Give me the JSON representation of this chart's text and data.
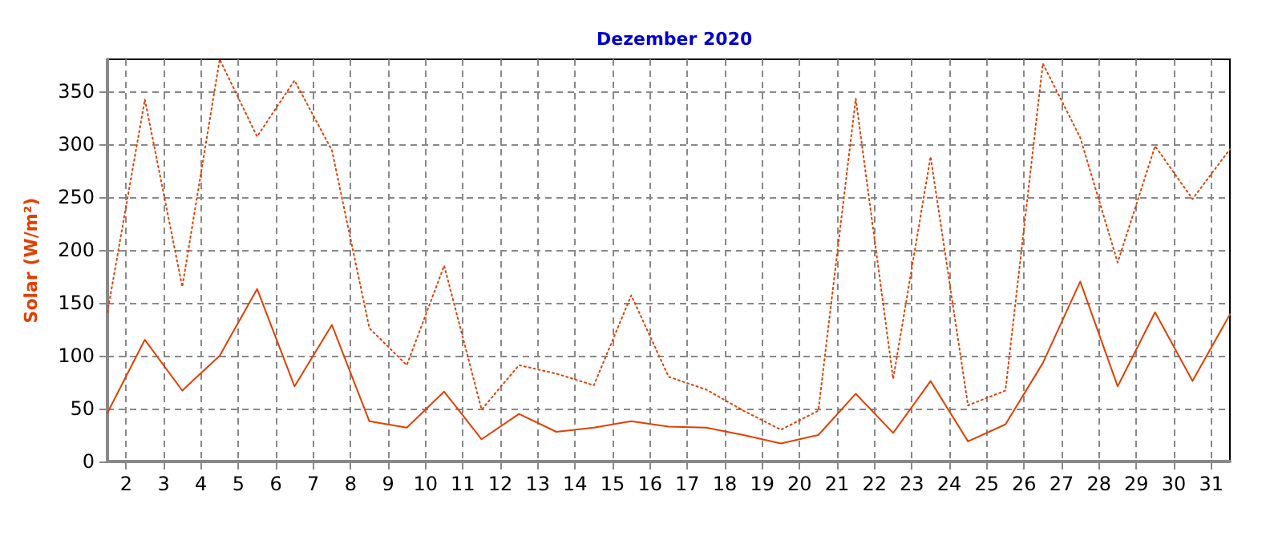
{
  "chart_data": {
    "type": "line",
    "title": "Dezember 2020",
    "ylabel": "Solar (W/m²)",
    "x": [
      1.5,
      2.5,
      3.5,
      4.5,
      5.5,
      6.5,
      7.5,
      8.5,
      9.5,
      10.5,
      11.5,
      12.5,
      13.5,
      14.5,
      15.5,
      16.5,
      17.5,
      18.5,
      19.5,
      20.5,
      21.5,
      22.5,
      23.5,
      24.5,
      25.5,
      26.5,
      27.5,
      28.5,
      29.5,
      30.5,
      31.5
    ],
    "series": [
      {
        "color": "#e04000",
        "line_style": "solid",
        "values": [
          46,
          115,
          67,
          100,
          163,
          71,
          129,
          38,
          32,
          66,
          21,
          45,
          28,
          32,
          38,
          33,
          32,
          25,
          17,
          25,
          64,
          27,
          76,
          19,
          35,
          93,
          170,
          71,
          141,
          76,
          139
        ]
      },
      {
        "color": "#e04000",
        "line_style": "dotted",
        "values": [
          141,
          342,
          165,
          380,
          307,
          360,
          294,
          126,
          91,
          185,
          49,
          91,
          83,
          72,
          157,
          80,
          68,
          48,
          30,
          48,
          343,
          78,
          288,
          53,
          67,
          376,
          306,
          188,
          298,
          248,
          295
        ]
      }
    ],
    "xlim": [
      1.5,
      31.5
    ],
    "xticks": [
      2,
      3,
      4,
      5,
      6,
      7,
      8,
      9,
      10,
      11,
      12,
      13,
      14,
      15,
      16,
      17,
      18,
      19,
      20,
      21,
      22,
      23,
      24,
      25,
      26,
      27,
      28,
      29,
      30,
      31
    ],
    "ylim": [
      0,
      380
    ],
    "yticks": [
      0,
      50,
      100,
      150,
      200,
      250,
      300,
      350
    ],
    "grid": true,
    "marker": "none"
  }
}
